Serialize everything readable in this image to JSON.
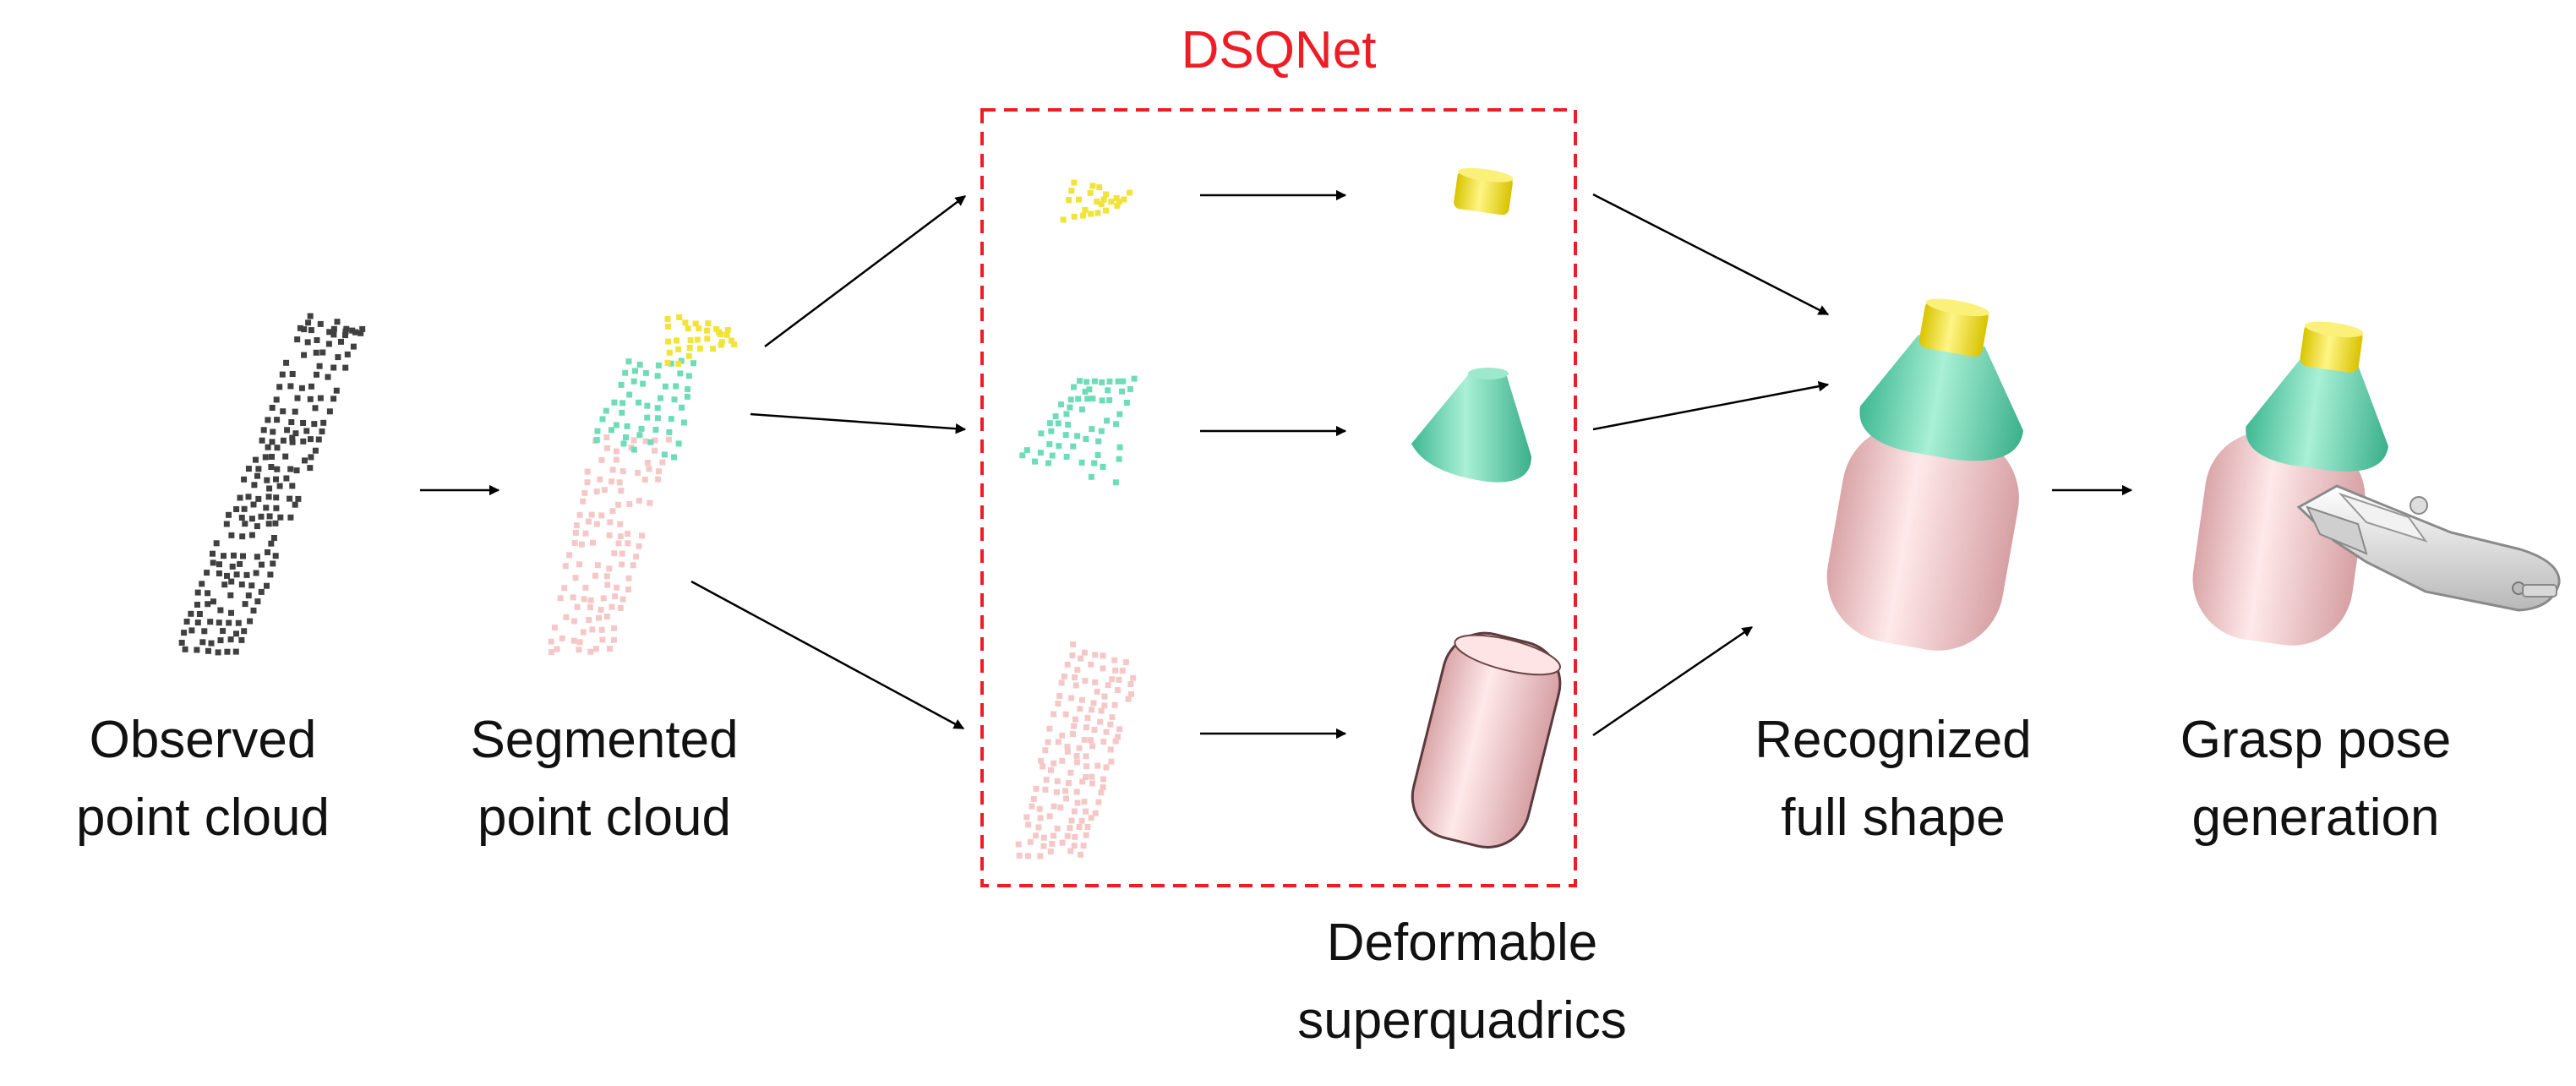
{
  "title": "DSQNet",
  "stages": {
    "observed": [
      "Observed",
      "point cloud"
    ],
    "segmented": [
      "Segmented",
      "point cloud"
    ],
    "superquadrics": [
      "Deformable",
      "superquadrics"
    ],
    "recognized": [
      "Recognized",
      "full shape"
    ],
    "grasp": [
      "Grasp pose",
      "generation"
    ]
  },
  "colors": {
    "observed_points": "#404040",
    "cap": "#f2e338",
    "neck": "#6fdcb8",
    "body": "#f5c8c8",
    "box_border": "#ee1c25",
    "title": "#ee1c25",
    "arrow": "#000000",
    "gripper": "#e6e6e6"
  }
}
